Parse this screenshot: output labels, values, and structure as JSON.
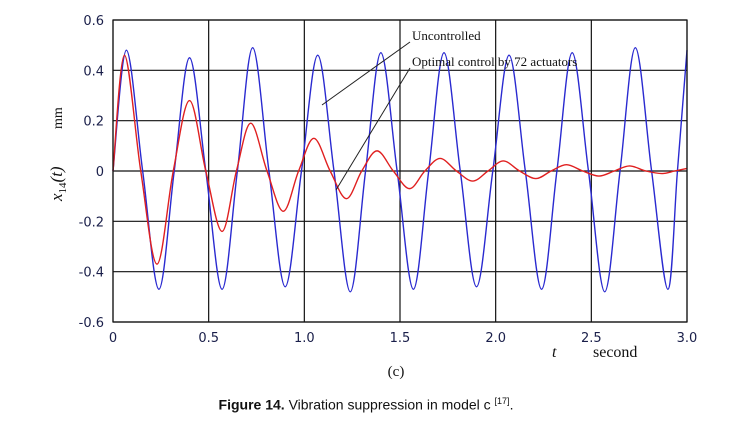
{
  "chart_data": {
    "type": "line",
    "panel_label": "(c)",
    "xlabel_symbol": "t",
    "xlabel_unit": "second",
    "ylabel_symbol": "x",
    "ylabel_subscript": "14",
    "ylabel_arg": "(t)",
    "ylabel_unit": "mm",
    "xlim": [
      0,
      3.0
    ],
    "ylim": [
      -0.6,
      0.6
    ],
    "xticks": [
      "0",
      "0.5",
      "1.0",
      "1.5",
      "2.0",
      "2.5",
      "3.0"
    ],
    "xtick_values": [
      0,
      0.5,
      1.0,
      1.5,
      2.0,
      2.5,
      3.0
    ],
    "yticks": [
      "0.6",
      "0.4",
      "0.2",
      "0",
      "-0.2",
      "-0.4",
      "-0.6"
    ],
    "ytick_values": [
      0.6,
      0.4,
      0.2,
      0,
      -0.2,
      -0.4,
      -0.6
    ],
    "grid": true,
    "series": [
      {
        "name": "Uncontrolled",
        "color": "#2a2ad0",
        "extrema": [
          [
            0,
            0
          ],
          [
            0.07,
            0.48
          ],
          [
            0.24,
            -0.47
          ],
          [
            0.4,
            0.45
          ],
          [
            0.57,
            -0.47
          ],
          [
            0.73,
            0.49
          ],
          [
            0.9,
            -0.46
          ],
          [
            1.07,
            0.46
          ],
          [
            1.24,
            -0.48
          ],
          [
            1.4,
            0.47
          ],
          [
            1.57,
            -0.47
          ],
          [
            1.73,
            0.47
          ],
          [
            1.9,
            -0.46
          ],
          [
            2.07,
            0.46
          ],
          [
            2.24,
            -0.47
          ],
          [
            2.4,
            0.47
          ],
          [
            2.57,
            -0.48
          ],
          [
            2.73,
            0.49
          ],
          [
            2.9,
            -0.47
          ],
          [
            3.0,
            0.48
          ]
        ]
      },
      {
        "name": "Optimal control by 72 actuators",
        "color": "#e02020",
        "extrema": [
          [
            0,
            0
          ],
          [
            0.06,
            0.46
          ],
          [
            0.23,
            -0.37
          ],
          [
            0.4,
            0.28
          ],
          [
            0.57,
            -0.24
          ],
          [
            0.72,
            0.19
          ],
          [
            0.89,
            -0.16
          ],
          [
            1.05,
            0.13
          ],
          [
            1.22,
            -0.11
          ],
          [
            1.38,
            0.08
          ],
          [
            1.55,
            -0.07
          ],
          [
            1.71,
            0.05
          ],
          [
            1.88,
            -0.04
          ],
          [
            2.04,
            0.04
          ],
          [
            2.21,
            -0.03
          ],
          [
            2.37,
            0.025
          ],
          [
            2.54,
            -0.02
          ],
          [
            2.7,
            0.02
          ],
          [
            2.87,
            -0.01
          ],
          [
            3.0,
            0.01
          ]
        ]
      }
    ],
    "annotations": [
      "Uncontrolled",
      "Optimal control by 72 actuators"
    ]
  },
  "caption": {
    "label": "Figure 14.",
    "text": " Vibration suppression in model c ",
    "ref": "[17]",
    "end": "."
  }
}
